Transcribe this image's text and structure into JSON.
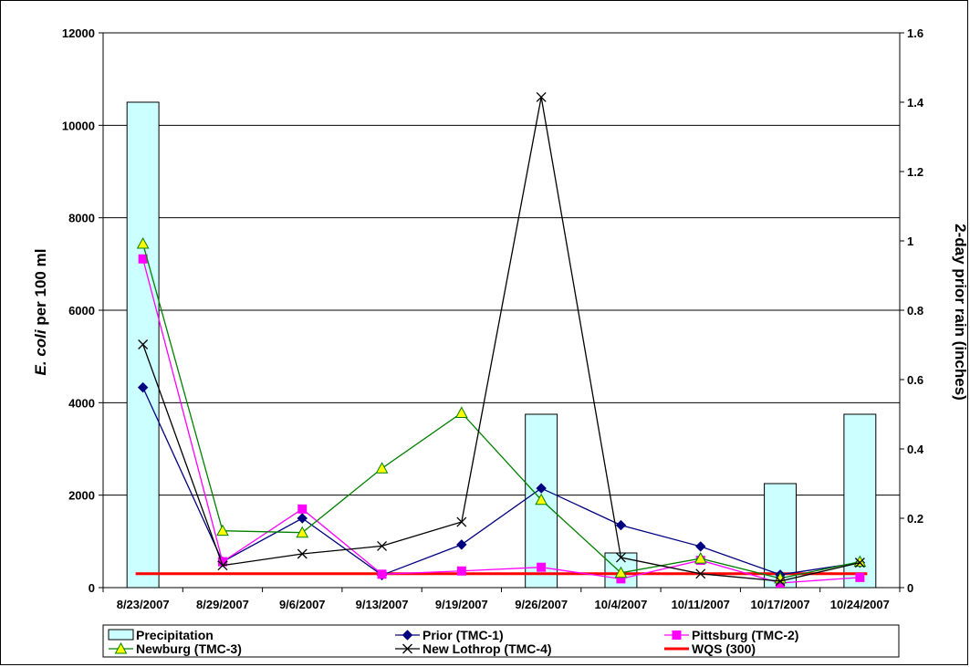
{
  "chart_data": {
    "type": "bar+line",
    "categories": [
      "8/23/2007",
      "8/29/2007",
      "9/6/2007",
      "9/13/2007",
      "9/19/2007",
      "9/26/2007",
      "10/4/2007",
      "10/11/2007",
      "10/17/2007",
      "10/24/2007"
    ],
    "ylabel_italic": "E. coli",
    "ylabel_rest": " per 100 ml",
    "y2label": "2-day prior rain (inches)",
    "ylim": [
      0,
      12000
    ],
    "y_ticks": [
      0,
      2000,
      4000,
      6000,
      8000,
      10000,
      12000
    ],
    "y2lim": [
      0,
      1.6
    ],
    "y2_ticks": [
      "0",
      "0.2",
      "0.4",
      "0.6",
      "0.8",
      "1",
      "1.2",
      "1.4",
      "1.6"
    ],
    "grid": true,
    "legend_position": "bottom",
    "bar_series": {
      "name": "Precipitation",
      "axis": "secondary",
      "values": [
        1.4,
        null,
        null,
        null,
        null,
        0.5,
        0.1,
        null,
        0.3,
        0.5
      ],
      "color": "#ccffff"
    },
    "series": [
      {
        "name": "Prior (TMC-1)",
        "color": "#000080",
        "marker": "diamond",
        "values": [
          4330,
          560,
          1500,
          270,
          930,
          2150,
          1350,
          890,
          280,
          540
        ]
      },
      {
        "name": "Pittsburg (TMC-2)",
        "color": "#ff00ff",
        "marker": "square",
        "values": [
          7110,
          560,
          1700,
          290,
          360,
          440,
          190,
          590,
          100,
          220
        ]
      },
      {
        "name": "Newburg (TMC-3)",
        "color": "#008000",
        "marker": "triangle",
        "values": [
          7440,
          1230,
          1190,
          2580,
          3780,
          1900,
          320,
          630,
          200,
          560
        ]
      },
      {
        "name": "New Lothrop (TMC-4)",
        "color": "#000000",
        "marker": "x",
        "values": [
          5260,
          480,
          730,
          900,
          1420,
          10610,
          650,
          300,
          140,
          540
        ]
      },
      {
        "name": "WQS (300)",
        "color": "#ff0000",
        "marker": "none",
        "values": [
          300,
          300,
          300,
          300,
          300,
          300,
          300,
          300,
          300,
          300
        ]
      }
    ]
  }
}
